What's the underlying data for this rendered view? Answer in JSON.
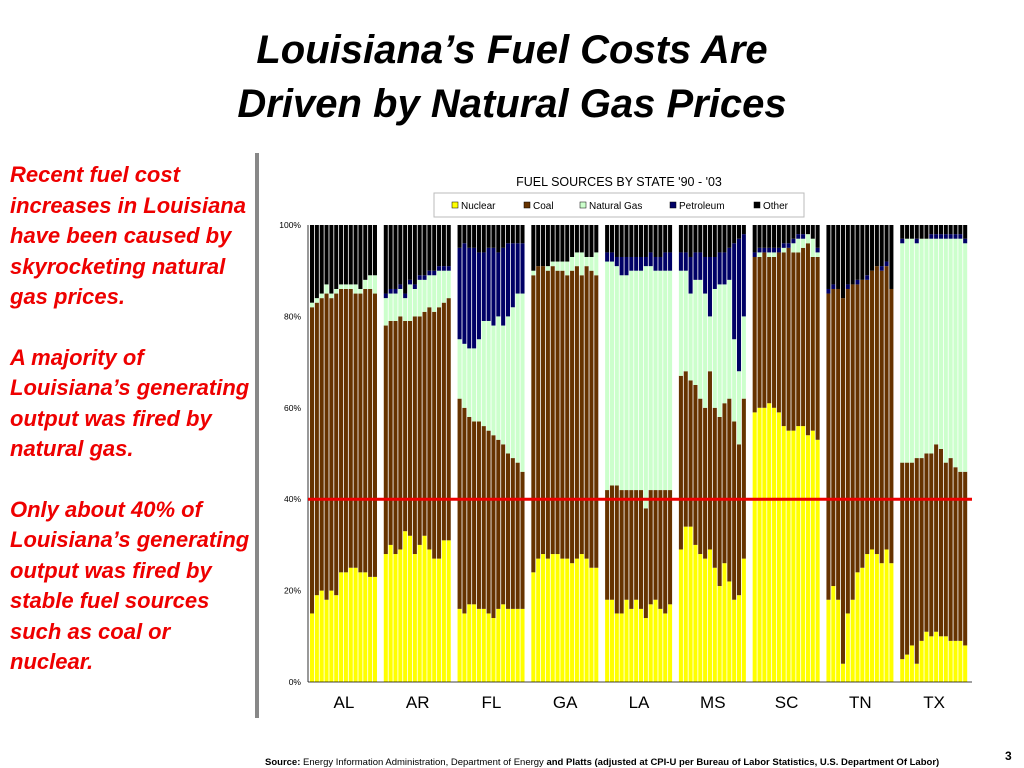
{
  "slide": {
    "title_line1": "Louisiana’s Fuel Costs Are",
    "title_line2": "Driven by Natural Gas Prices",
    "bullets": [
      "Recent fuel cost increases in Louisiana have been caused by skyrocketing natural gas prices.",
      "A majority of Louisiana’s generating output was fired by natural gas.",
      "Only about 40% of Louisiana’s generating output was fired by stable fuel sources such as coal or nuclear."
    ],
    "source_label": "Source:",
    "source_text": " Energy Information Administration, Department of Energy ",
    "source_bold": "and Platts (adjusted at CPI-U per Bureau of Labor Statistics, U.S. Department Of Labor)",
    "page_number": "3"
  },
  "chart_data": {
    "type": "bar",
    "stacked": true,
    "title": "FUEL SOURCES BY STATE '90 - '03",
    "ylim": [
      0,
      100
    ],
    "yticks": [
      "0%",
      "20%",
      "40%",
      "60%",
      "80%",
      "100%"
    ],
    "legend_position": "top",
    "reference_line": {
      "value": 40,
      "color": "#ee0000"
    },
    "series": [
      {
        "name": "Nuclear",
        "color": "#ffff00"
      },
      {
        "name": "Coal",
        "color": "#663300"
      },
      {
        "name": "Natural Gas",
        "color": "#ccffcc"
      },
      {
        "name": "Petroleum",
        "color": "#000066"
      },
      {
        "name": "Other",
        "color": "#000000"
      }
    ],
    "groups": [
      {
        "label": "AL",
        "nuclear": [
          15,
          19,
          20,
          18,
          20,
          19,
          24,
          24,
          25,
          25,
          24,
          24,
          23,
          23
        ],
        "coal": [
          82,
          83,
          84,
          85,
          84,
          85,
          86,
          86,
          86,
          85,
          85,
          86,
          86,
          85
        ],
        "gas": [
          83,
          84,
          85,
          87,
          85,
          86,
          87,
          87,
          87,
          87,
          86,
          88,
          89,
          89
        ],
        "petro": [
          83,
          84,
          85,
          87,
          85,
          86,
          87,
          87,
          87,
          87,
          86,
          88,
          89,
          89
        ]
      },
      {
        "label": "AR",
        "nuclear": [
          28,
          30,
          28,
          29,
          33,
          32,
          28,
          30,
          32,
          29,
          27,
          27,
          31,
          31
        ],
        "coal": [
          78,
          79,
          79,
          80,
          79,
          79,
          80,
          80,
          81,
          82,
          81,
          82,
          83,
          84
        ],
        "gas": [
          84,
          85,
          85,
          86,
          84,
          87,
          86,
          88,
          88,
          89,
          89,
          90,
          90,
          90
        ],
        "petro": [
          85,
          86,
          86,
          87,
          85,
          88,
          87,
          89,
          89,
          90,
          90,
          91,
          91,
          91
        ]
      },
      {
        "label": "FL",
        "nuclear": [
          16,
          15,
          17,
          17,
          16,
          16,
          15,
          14,
          16,
          17,
          16,
          16,
          16,
          16
        ],
        "coal": [
          62,
          60,
          58,
          57,
          57,
          56,
          55,
          54,
          53,
          52,
          50,
          49,
          48,
          46
        ],
        "gas": [
          75,
          74,
          73,
          73,
          75,
          79,
          79,
          78,
          80,
          78,
          80,
          82,
          85,
          85
        ],
        "petro": [
          95,
          96,
          95,
          95,
          94,
          94,
          95,
          95,
          94,
          95,
          96,
          96,
          96,
          96
        ]
      },
      {
        "label": "GA",
        "nuclear": [
          24,
          27,
          28,
          27,
          28,
          28,
          27,
          27,
          26,
          27,
          28,
          27,
          25,
          25
        ],
        "coal": [
          89,
          91,
          91,
          90,
          91,
          90,
          90,
          89,
          90,
          91,
          89,
          91,
          90,
          89
        ],
        "gas": [
          90,
          91,
          91,
          91,
          92,
          92,
          92,
          92,
          93,
          94,
          94,
          93,
          93,
          94
        ],
        "petro": [
          90,
          91,
          91,
          91,
          92,
          92,
          92,
          92,
          93,
          94,
          94,
          93,
          93,
          94
        ]
      },
      {
        "label": "LA",
        "nuclear": [
          18,
          18,
          15,
          15,
          18,
          16,
          18,
          16,
          14,
          17,
          18,
          16,
          15,
          17
        ],
        "coal": [
          42,
          43,
          43,
          42,
          42,
          42,
          42,
          42,
          38,
          42,
          42,
          42,
          42,
          42
        ],
        "gas": [
          92,
          92,
          91,
          89,
          89,
          90,
          90,
          90,
          91,
          91,
          90,
          90,
          90,
          90
        ],
        "petro": [
          94,
          94,
          93,
          93,
          93,
          93,
          93,
          93,
          93,
          94,
          93,
          93,
          94,
          94
        ]
      },
      {
        "label": "MS",
        "nuclear": [
          29,
          34,
          34,
          30,
          28,
          27,
          29,
          25,
          21,
          26,
          22,
          18,
          19,
          27
        ],
        "coal": [
          67,
          68,
          66,
          65,
          62,
          60,
          68,
          60,
          58,
          61,
          62,
          57,
          52,
          62
        ],
        "gas": [
          90,
          90,
          85,
          88,
          88,
          85,
          80,
          86,
          87,
          87,
          88,
          75,
          68,
          80
        ],
        "petro": [
          94,
          94,
          93,
          94,
          94,
          93,
          93,
          93,
          94,
          94,
          95,
          96,
          97,
          98
        ]
      },
      {
        "label": "SC",
        "nuclear": [
          59,
          60,
          60,
          61,
          60,
          59,
          56,
          55,
          55,
          56,
          56,
          54,
          55,
          53
        ],
        "coal": [
          93,
          93,
          94,
          93,
          93,
          94,
          94,
          95,
          94,
          94,
          95,
          96,
          93,
          93
        ],
        "gas": [
          93,
          94,
          94,
          94,
          94,
          94,
          95,
          95,
          96,
          97,
          97,
          98,
          97,
          94
        ],
        "petro": [
          94,
          95,
          95,
          95,
          95,
          95,
          96,
          96,
          97,
          98,
          98,
          98,
          97,
          95
        ]
      },
      {
        "label": "TN",
        "nuclear": [
          18,
          21,
          18,
          4,
          15,
          18,
          24,
          25,
          28,
          29,
          28,
          26,
          29,
          26
        ],
        "coal": [
          85,
          86,
          86,
          84,
          86,
          87,
          87,
          88,
          88,
          90,
          91,
          90,
          91,
          86
        ],
        "gas": [
          85,
          86,
          86,
          84,
          86,
          87,
          87,
          88,
          88,
          90,
          91,
          90,
          91,
          86
        ],
        "petro": [
          86,
          87,
          86,
          84,
          87,
          87,
          88,
          88,
          89,
          90,
          91,
          91,
          92,
          86
        ]
      },
      {
        "label": "TX",
        "nuclear": [
          5,
          6,
          8,
          4,
          9,
          11,
          10,
          11,
          10,
          10,
          9,
          9,
          9,
          8
        ],
        "coal": [
          48,
          48,
          48,
          49,
          49,
          50,
          50,
          52,
          51,
          48,
          49,
          47,
          46,
          46
        ],
        "gas": [
          96,
          97,
          97,
          96,
          97,
          97,
          97,
          97,
          97,
          97,
          97,
          97,
          97,
          96
        ],
        "petro": [
          97,
          97,
          97,
          97,
          97,
          97,
          98,
          98,
          98,
          98,
          98,
          98,
          98,
          97
        ]
      }
    ]
  }
}
